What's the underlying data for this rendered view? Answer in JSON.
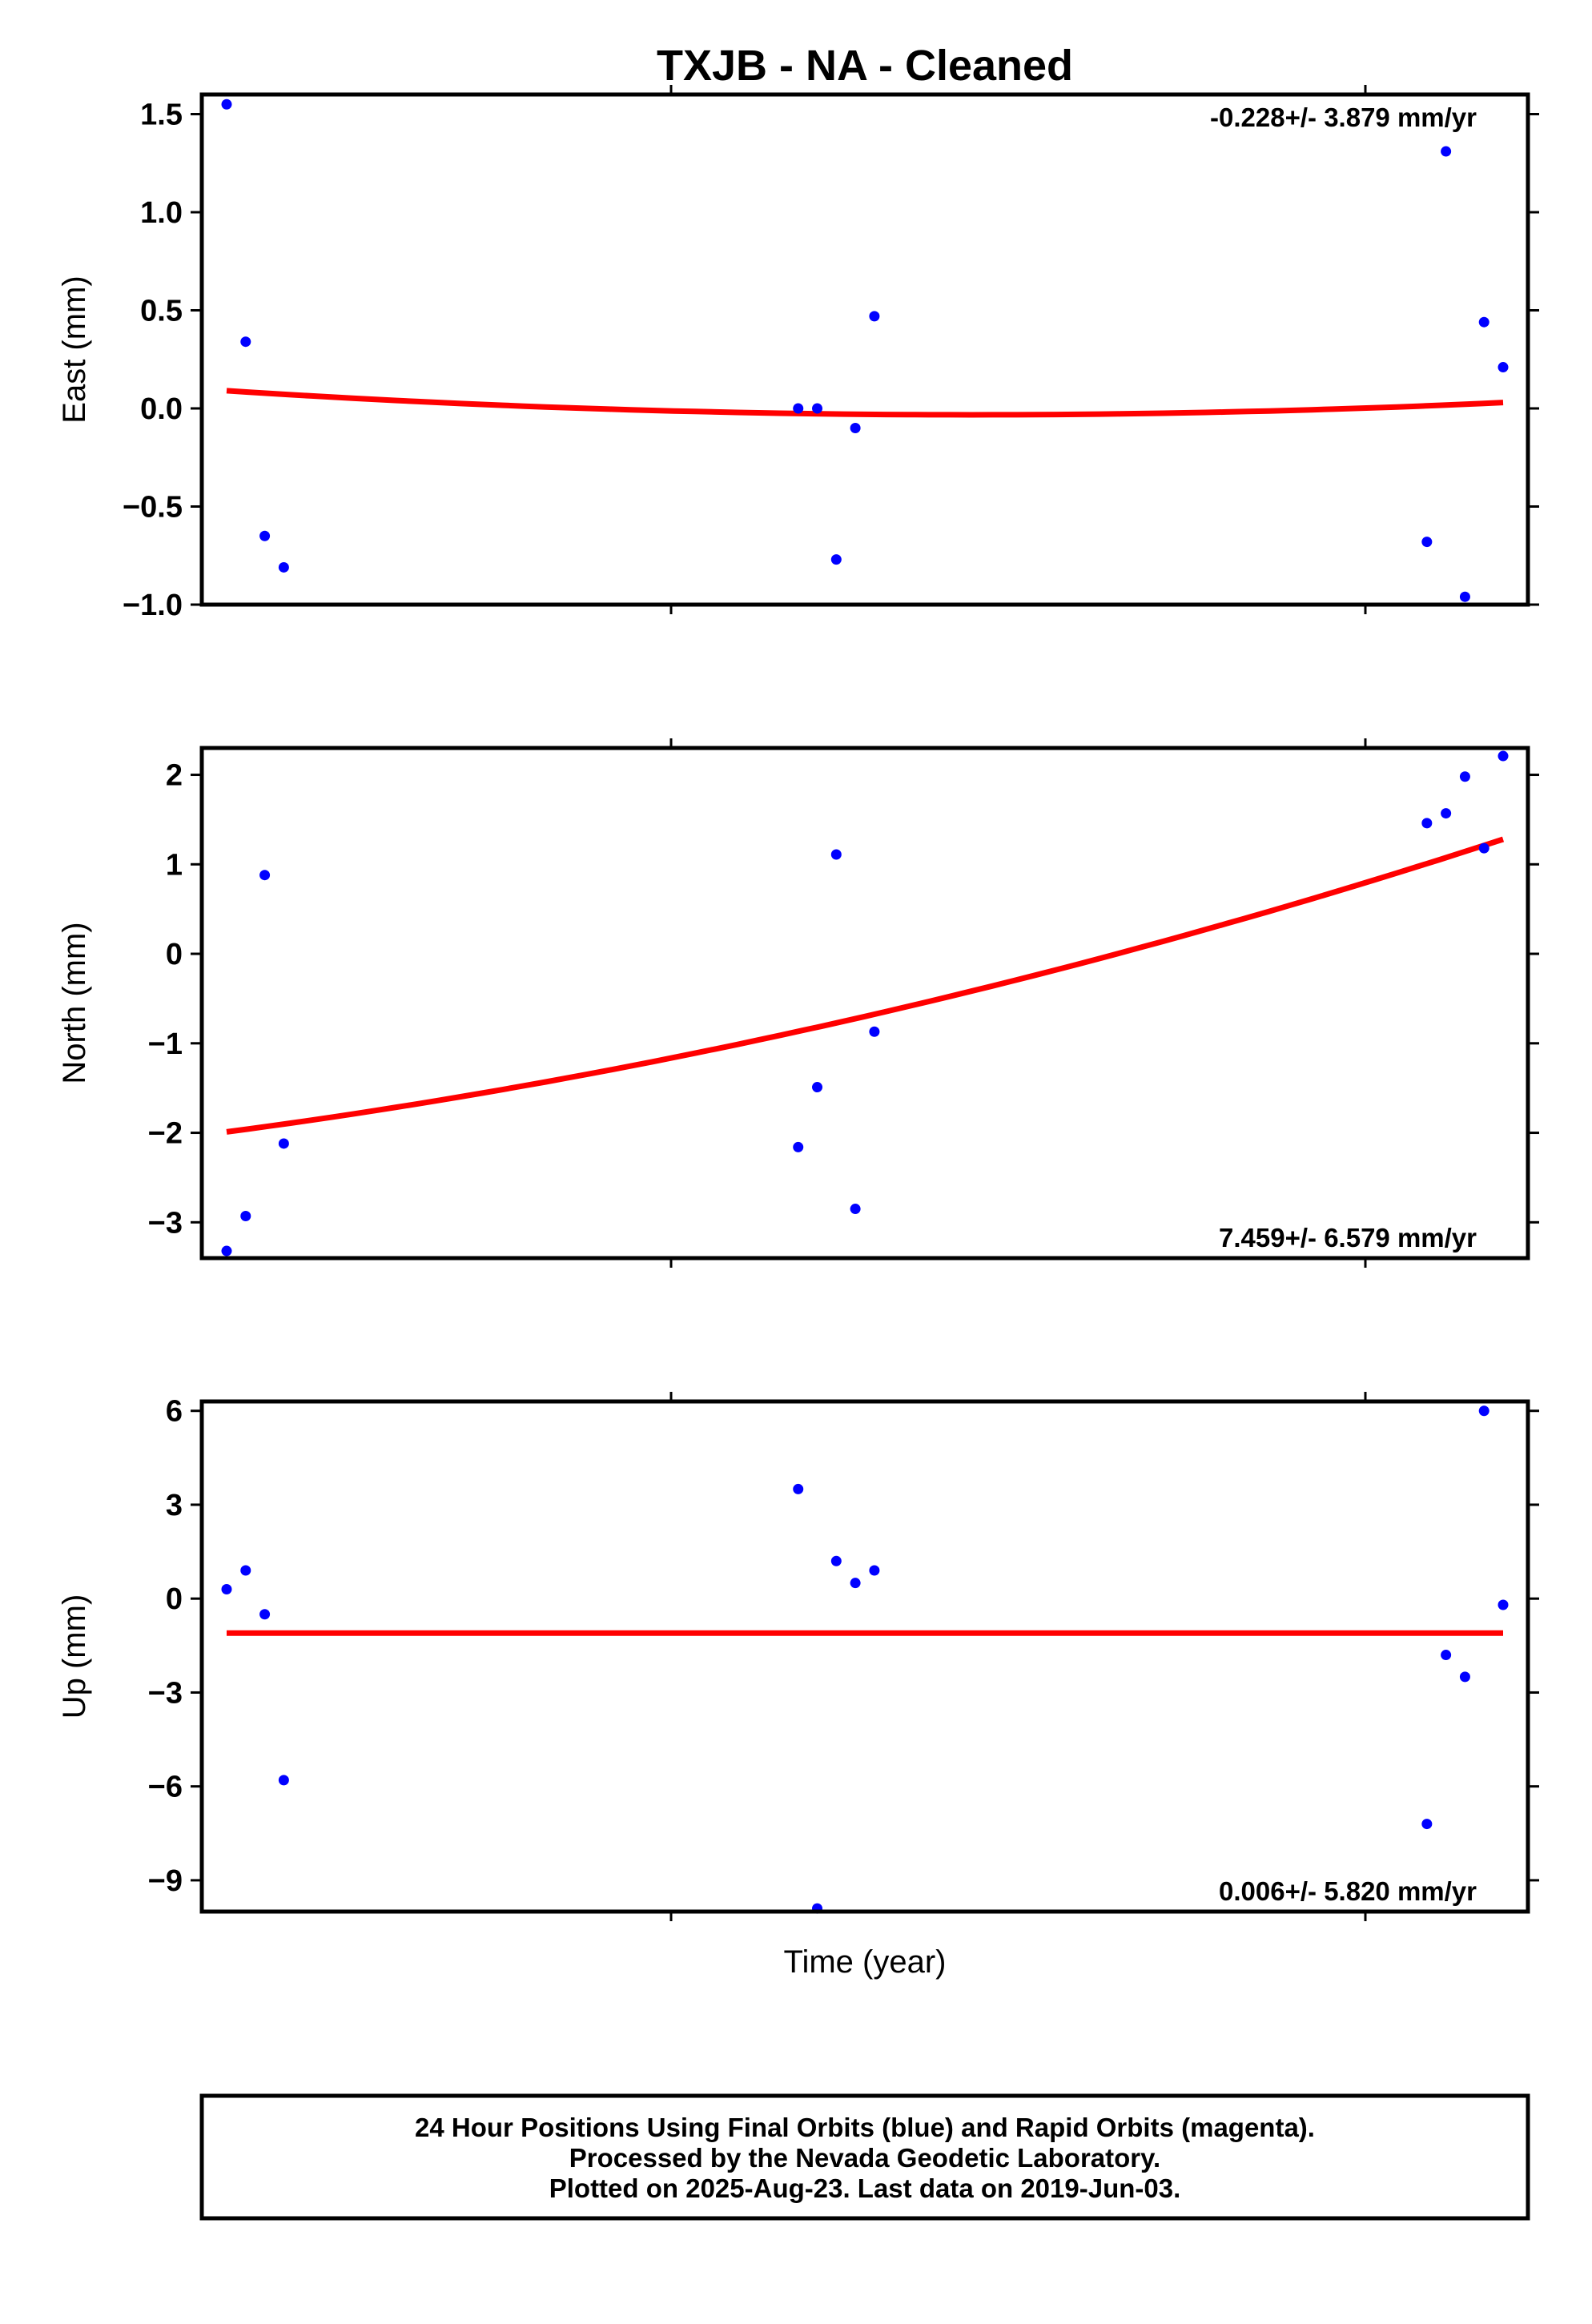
{
  "title": "TXJB  - NA - Cleaned",
  "xlabel": "Time (year)",
  "footer": {
    "line1": "24 Hour Positions Using Final Orbits (blue) and Rapid Orbits (magenta).",
    "line2": "Processed by the Nevada Geodetic Laboratory.",
    "line3": "Plotted on 2025-Aug-23. Last data on 2019-Jun-03."
  },
  "colors": {
    "final_orbits": "#0000ff",
    "fit_line": "#ff0000",
    "frame": "#000000"
  },
  "chart_data": [
    {
      "type": "scatter",
      "ylabel": "East (mm)",
      "rate_label": "-0.228+/- 3.879 mm/yr",
      "rate_position": "top-right",
      "ylim": [
        -1.0,
        1.6
      ],
      "ytick_values": [
        -1.0,
        -0.5,
        0.0,
        0.5,
        1.0,
        1.5
      ],
      "ytick_labels": [
        "−1.0",
        "−0.5",
        "0.0",
        "0.5",
        "1.0",
        "1.5"
      ],
      "series": [
        {
          "x": [
            0,
            1,
            2,
            3,
            30,
            31,
            32,
            33,
            34,
            63,
            64,
            65,
            66,
            67
          ],
          "values": [
            1.55,
            0.34,
            -0.65,
            -0.81,
            0.0,
            0.0,
            -0.77,
            -0.1,
            0.47,
            -0.68,
            1.31,
            -0.96,
            0.44,
            0.21
          ]
        }
      ],
      "fit": {
        "x": [
          0,
          33.5,
          67
        ],
        "y": [
          0.09,
          -0.03,
          0.03
        ]
      }
    },
    {
      "type": "scatter",
      "ylabel": "North (mm)",
      "rate_label": "7.459+/- 6.579 mm/yr",
      "rate_position": "bottom-right",
      "ylim": [
        -3.4,
        2.3
      ],
      "ytick_values": [
        -3,
        -2,
        -1,
        0,
        1,
        2
      ],
      "ytick_labels": [
        "−3",
        "−2",
        "−1",
        "0",
        "1",
        "2"
      ],
      "series": [
        {
          "x": [
            0,
            1,
            2,
            3,
            30,
            31,
            32,
            33,
            34,
            63,
            64,
            65,
            66,
            67
          ],
          "values": [
            -3.32,
            -2.93,
            0.88,
            -2.12,
            -2.16,
            -1.49,
            1.11,
            -2.85,
            -0.87,
            1.46,
            1.57,
            1.98,
            1.18,
            2.21
          ]
        }
      ],
      "fit": {
        "x": [
          0,
          33.5,
          67
        ],
        "y": [
          -1.99,
          -0.7,
          1.28
        ]
      }
    },
    {
      "type": "scatter",
      "ylabel": "Up (mm)",
      "rate_label": "0.006+/- 5.820 mm/yr",
      "rate_position": "bottom-right",
      "ylim": [
        -10.0,
        6.3
      ],
      "ytick_values": [
        -9,
        -6,
        -3,
        0,
        3,
        6
      ],
      "ytick_labels": [
        "−9",
        "−6",
        "−3",
        "0",
        "3",
        "6"
      ],
      "series": [
        {
          "x": [
            0,
            1,
            2,
            3,
            30,
            31,
            32,
            33,
            34,
            63,
            64,
            65,
            66,
            67
          ],
          "values": [
            0.3,
            0.9,
            -0.5,
            -5.8,
            3.5,
            -9.9,
            1.2,
            0.5,
            0.9,
            -7.2,
            -1.8,
            -2.5,
            6.0,
            -0.2
          ]
        }
      ],
      "fit": {
        "x": [
          0,
          67
        ],
        "y": [
          -1.1,
          -1.1
        ]
      }
    }
  ]
}
